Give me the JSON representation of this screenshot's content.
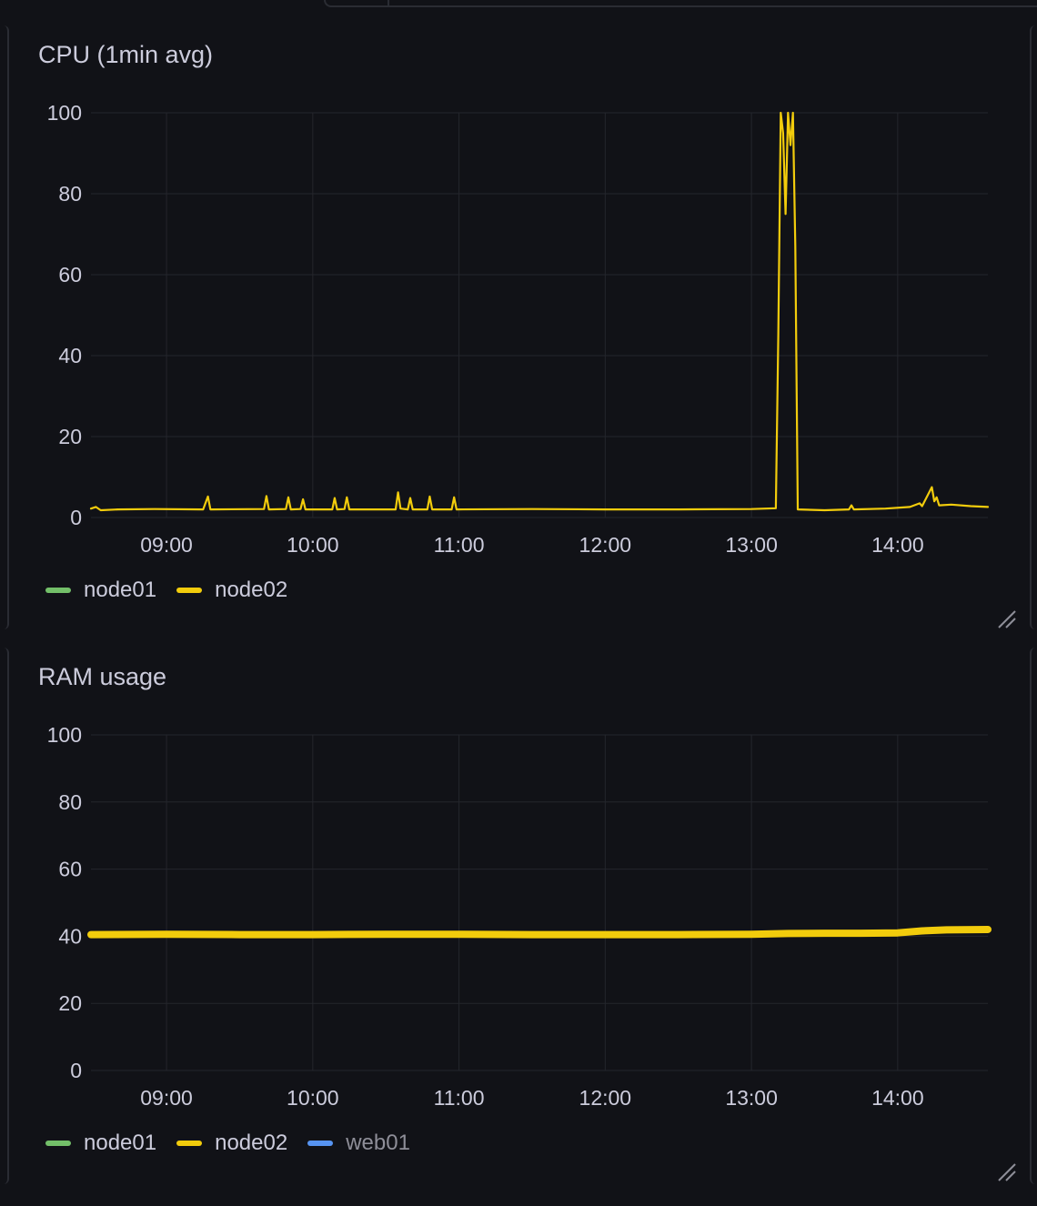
{
  "panels": [
    {
      "title": "CPU (1min avg)",
      "legend": [
        {
          "label": "node01",
          "color": "#73bf69",
          "hidden": false
        },
        {
          "label": "node02",
          "color": "#f2cc0c",
          "hidden": false
        }
      ]
    },
    {
      "title": "RAM usage",
      "legend": [
        {
          "label": "node01",
          "color": "#73bf69",
          "hidden": false
        },
        {
          "label": "node02",
          "color": "#f2cc0c",
          "hidden": false
        },
        {
          "label": "web01",
          "color": "#5794f2",
          "hidden": true
        }
      ]
    }
  ],
  "chart_data": [
    {
      "type": "line",
      "title": "CPU (1min avg)",
      "xlabel": "",
      "ylabel": "",
      "x_ticks": [
        "09:00",
        "10:00",
        "11:00",
        "12:00",
        "13:00",
        "14:00"
      ],
      "y_ticks": [
        0,
        20,
        40,
        60,
        80,
        100
      ],
      "xlim": [
        "08:29",
        "14:37"
      ],
      "ylim": [
        0,
        100
      ],
      "grid": true,
      "legend_position": "bottom-left",
      "series": [
        {
          "name": "node02",
          "color": "#f2cc0c",
          "points": [
            [
              "08:29",
              2.2
            ],
            [
              "08:31",
              2.6
            ],
            [
              "08:33",
              1.8
            ],
            [
              "08:40",
              2.0
            ],
            [
              "08:55",
              2.1
            ],
            [
              "09:15",
              2.0
            ],
            [
              "09:17",
              5.2
            ],
            [
              "09:18",
              2.0
            ],
            [
              "09:40",
              2.1
            ],
            [
              "09:41",
              5.3
            ],
            [
              "09:42",
              2.0
            ],
            [
              "09:49",
              2.1
            ],
            [
              "09:50",
              5.0
            ],
            [
              "09:51",
              2.0
            ],
            [
              "09:55",
              2.1
            ],
            [
              "09:56",
              4.5
            ],
            [
              "09:57",
              2.0
            ],
            [
              "10:08",
              2.0
            ],
            [
              "10:09",
              4.8
            ],
            [
              "10:10",
              2.0
            ],
            [
              "10:13",
              2.1
            ],
            [
              "10:14",
              5.0
            ],
            [
              "10:15",
              2.0
            ],
            [
              "10:34",
              2.0
            ],
            [
              "10:35",
              6.2
            ],
            [
              "10:36",
              2.2
            ],
            [
              "10:39",
              2.0
            ],
            [
              "10:40",
              4.8
            ],
            [
              "10:41",
              2.0
            ],
            [
              "10:47",
              2.0
            ],
            [
              "10:48",
              5.2
            ],
            [
              "10:49",
              2.0
            ],
            [
              "10:57",
              2.0
            ],
            [
              "10:58",
              5.0
            ],
            [
              "10:59",
              2.0
            ],
            [
              "11:30",
              2.1
            ],
            [
              "12:00",
              2.0
            ],
            [
              "12:30",
              2.0
            ],
            [
              "13:00",
              2.1
            ],
            [
              "13:10",
              2.3
            ],
            [
              "13:11",
              45
            ],
            [
              "13:12",
              100
            ],
            [
              "13:13",
              95
            ],
            [
              "13:14",
              75
            ],
            [
              "13:15",
              100
            ],
            [
              "13:16",
              92
            ],
            [
              "13:17",
              100
            ],
            [
              "13:18",
              67
            ],
            [
              "13:19",
              2.0
            ],
            [
              "13:30",
              1.8
            ],
            [
              "13:40",
              2.0
            ],
            [
              "13:41",
              3.0
            ],
            [
              "13:42",
              2.0
            ],
            [
              "13:55",
              2.2
            ],
            [
              "14:05",
              2.6
            ],
            [
              "14:09",
              3.5
            ],
            [
              "14:10",
              2.8
            ],
            [
              "14:14",
              7.5
            ],
            [
              "14:15",
              4.0
            ],
            [
              "14:16",
              5.0
            ],
            [
              "14:17",
              3.0
            ],
            [
              "14:22",
              3.2
            ],
            [
              "14:30",
              2.8
            ],
            [
              "14:37",
              2.6
            ]
          ]
        }
      ]
    },
    {
      "type": "line",
      "title": "RAM usage",
      "xlabel": "",
      "ylabel": "",
      "x_ticks": [
        "09:00",
        "10:00",
        "11:00",
        "12:00",
        "13:00",
        "14:00"
      ],
      "y_ticks": [
        0,
        20,
        40,
        60,
        80,
        100
      ],
      "xlim": [
        "08:29",
        "14:37"
      ],
      "ylim": [
        0,
        100
      ],
      "grid": true,
      "legend_position": "bottom-left",
      "series": [
        {
          "name": "node02",
          "color": "#f2cc0c",
          "points": [
            [
              "08:29",
              40.5
            ],
            [
              "09:00",
              40.6
            ],
            [
              "09:30",
              40.5
            ],
            [
              "10:00",
              40.5
            ],
            [
              "10:30",
              40.6
            ],
            [
              "11:00",
              40.6
            ],
            [
              "11:30",
              40.5
            ],
            [
              "12:00",
              40.5
            ],
            [
              "12:30",
              40.5
            ],
            [
              "13:00",
              40.6
            ],
            [
              "13:15",
              40.8
            ],
            [
              "13:30",
              40.9
            ],
            [
              "13:45",
              40.9
            ],
            [
              "14:00",
              41.0
            ],
            [
              "14:10",
              41.6
            ],
            [
              "14:20",
              41.9
            ],
            [
              "14:37",
              42.0
            ]
          ]
        }
      ]
    }
  ]
}
